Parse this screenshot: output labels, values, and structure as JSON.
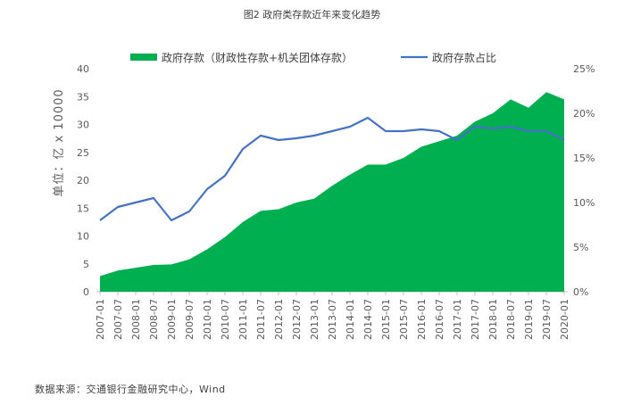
{
  "title": "图2 政府类存款近年来变化趋势",
  "source": "数据来源：交通银行金融研究中心，Wind",
  "chart_data": {
    "type": "area",
    "ylabel": "单位：亿  x 10000",
    "ylim": [
      0,
      40
    ],
    "y_ticks": [
      "0",
      "5",
      "10",
      "15",
      "20",
      "25",
      "30",
      "35",
      "40"
    ],
    "y2lim": [
      0,
      25
    ],
    "y2_ticks": [
      "0%",
      "5%",
      "10%",
      "15%",
      "20%",
      "25%"
    ],
    "x_ticks": [
      "2007-01",
      "2007-07",
      "2008-01",
      "2008-07",
      "2009-01",
      "2009-07",
      "2010-01",
      "2010-07",
      "2011-01",
      "2011-07",
      "2012-01",
      "2012-07",
      "2013-01",
      "2013-07",
      "2014-01",
      "2014-07",
      "2015-01",
      "2015-07",
      "2016-01",
      "2016-07",
      "2017-01",
      "2017-07",
      "2018-01",
      "2018-07",
      "2019-01",
      "2019-07",
      "2020-01"
    ],
    "legend_position": "top",
    "series": [
      {
        "name": "政府存款（财政性存款+机关团体存款）",
        "kind": "area",
        "axis": "left",
        "color": "#00B050",
        "values": [
          2.8,
          3.8,
          4.3,
          4.8,
          4.9,
          5.8,
          7.6,
          9.8,
          12.5,
          14.5,
          14.8,
          16.0,
          16.7,
          19.0,
          21.0,
          22.8,
          22.8,
          24.0,
          26.0,
          27.0,
          28.0,
          30.5,
          32.0,
          34.5,
          33.0,
          35.8,
          34.5
        ]
      },
      {
        "name": "政府存款占比",
        "kind": "line",
        "axis": "right",
        "color": "#4472C4",
        "values": [
          8.0,
          9.5,
          10.0,
          10.5,
          8.0,
          9.0,
          11.5,
          13.0,
          16.0,
          17.5,
          17.0,
          17.2,
          17.5,
          18.0,
          18.5,
          19.5,
          18.0,
          18.0,
          18.2,
          18.0,
          17.0,
          18.5,
          18.3,
          18.5,
          18.0,
          18.0,
          17.0
        ]
      }
    ]
  }
}
